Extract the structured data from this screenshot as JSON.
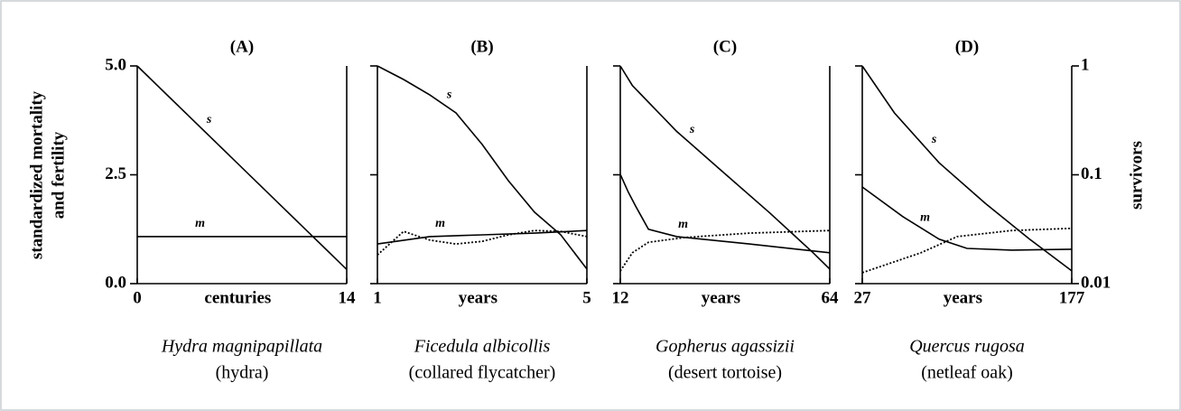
{
  "chart_data": {
    "type": "line",
    "ylabel": [
      "standardized mortality",
      "and fertility"
    ],
    "ylim": [
      0,
      5
    ],
    "yticks": [
      {
        "value": 0,
        "label": "0.0"
      },
      2.5,
      {
        "value": 5,
        "label": "5.0"
      }
    ],
    "y2label": "survivors",
    "y2lim": [
      0.01,
      1
    ],
    "y2ticks": [
      0.01,
      0.1,
      1
    ],
    "y2log": true,
    "panels": [
      {
        "title": "(A)",
        "xlabel": "centuries",
        "xlim": [
          0,
          14
        ],
        "xticks": [
          0,
          14
        ],
        "species": "Hydra magnipapillata",
        "common_name": "(hydra)",
        "series": [
          {
            "name": "s",
            "axis": "y2",
            "style": "solid",
            "color": "#000000",
            "x": [
              0,
              14
            ],
            "values": [
              1,
              0.0135
            ]
          },
          {
            "name": "m",
            "style": "solid",
            "color": "#000000",
            "x": [
              0,
              14
            ],
            "values": [
              1.08,
              1.08
            ]
          }
        ]
      },
      {
        "title": "(B)",
        "xlabel": "years",
        "xlim": [
          1,
          5
        ],
        "xticks": [
          1,
          5
        ],
        "species": "Ficedula albicollis",
        "common_name": "(collared flycatcher)",
        "series": [
          {
            "name": "s",
            "axis": "y2",
            "style": "solid",
            "color": "#000000",
            "x": [
              1,
              1.5,
              2,
              2.5,
              3,
              3.5,
              4,
              4.5,
              5
            ],
            "values": [
              1,
              0.751,
              0.542,
              0.37,
              0.19,
              0.0883,
              0.0453,
              0.0281,
              0.0136
            ]
          },
          {
            "name": "m",
            "style": "solid",
            "color": "#000000",
            "x": [
              1,
              2,
              3,
              4,
              5
            ],
            "values": [
              0.91,
              1.08,
              1.12,
              1.16,
              1.22
            ]
          },
          {
            "style": "dotted",
            "color": "#000000",
            "x": [
              1,
              1.5,
              2,
              2.5,
              3,
              3.5,
              4,
              4.5,
              5
            ],
            "values": [
              0.66,
              1.2,
              1.0,
              0.91,
              0.97,
              1.12,
              1.22,
              1.2,
              1.08
            ]
          }
        ]
      },
      {
        "title": "(C)",
        "xlabel": "years",
        "xlim": [
          12,
          64
        ],
        "xticks": [
          12,
          64
        ],
        "species": "Gopherus agassizii",
        "common_name": "(desert tortoise)",
        "series": [
          {
            "name": "s",
            "axis": "y2",
            "style": "solid",
            "color": "#000000",
            "x": [
              12,
              15,
              26,
              37,
              49,
              60,
              64
            ],
            "values": [
              1,
              0.66,
              0.25,
              0.11,
              0.045,
              0.019,
              0.0136
            ]
          },
          {
            "name": "m",
            "style": "solid",
            "color": "#000000",
            "x": [
              12,
              14,
              16,
              19,
              26,
              44,
              64
            ],
            "values": [
              2.51,
              2.1,
              1.75,
              1.25,
              1.08,
              0.91,
              0.71
            ]
          },
          {
            "style": "dotted",
            "color": "#000000",
            "x": [
              12,
              15,
              19,
              28,
              44,
              64
            ],
            "values": [
              0.29,
              0.71,
              0.95,
              1.06,
              1.16,
              1.22
            ]
          }
        ]
      },
      {
        "title": "(D)",
        "xlabel": "years",
        "xlim": [
          27,
          177
        ],
        "xticks": [
          27,
          177
        ],
        "species": "Quercus rugosa",
        "common_name": "(netleaf oak)",
        "series": [
          {
            "name": "s",
            "axis": "y2",
            "style": "solid",
            "color": "#000000",
            "x": [
              27,
              50,
              82,
              115,
              147,
              177
            ],
            "values": [
              1,
              0.37,
              0.129,
              0.0548,
              0.0255,
              0.0131
            ]
          },
          {
            "name": "m",
            "style": "solid",
            "color": "#000000",
            "x": [
              27,
              56,
              82,
              102,
              134,
              177
            ],
            "values": [
              2.22,
              1.54,
              1.02,
              0.81,
              0.77,
              0.79
            ]
          },
          {
            "style": "dotted",
            "color": "#000000",
            "x": [
              27,
              69,
              95,
              134,
              177
            ],
            "values": [
              0.25,
              0.71,
              1.08,
              1.22,
              1.27
            ]
          }
        ]
      }
    ]
  }
}
